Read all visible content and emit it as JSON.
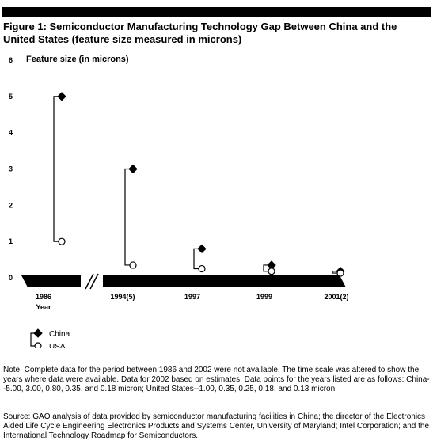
{
  "title": "Figure 1:  Semiconductor Manufacturing Technology Gap Between China and the United States (feature size measured in microns)",
  "note": "Note: Complete data for the period between 1986 and 2002 were not available. The time scale was altered to show the years where data were available. Data for 2002 based on estimates.  Data points for the years listed are as follows: China--5.00, 3.00, 0.80, 0.35, and 0.18 micron; United States--1.00, 0.35, 0.25, 0.18, and 0.13 micron.",
  "source": "Source: GAO analysis of data provided by semiconductor manufacturing facilities in China; the director of the Electronics Aided Life Cycle Engineering Electronics Products and Systems Center, University of Maryland; Intel Corporation; and the International Technology Roadmap for Semiconductors.",
  "chart_data": {
    "type": "scatter",
    "ylabel": "Feature size (in microns)",
    "xlabel": "Year",
    "categories": [
      "1986",
      "1994(5)",
      "1997",
      "1999",
      "2001(2)"
    ],
    "y_ticks": [
      "0",
      "1",
      "2",
      "3",
      "4",
      "5",
      "6"
    ],
    "ylim": [
      0,
      6
    ],
    "series": [
      {
        "name": "China",
        "marker": "diamond",
        "color": "#000000",
        "values": [
          5.0,
          3.0,
          0.8,
          0.35,
          0.18
        ]
      },
      {
        "name": "USA",
        "marker": "circle",
        "color": "#ffffff",
        "values": [
          1.0,
          0.35,
          0.25,
          0.18,
          0.13
        ]
      }
    ]
  }
}
